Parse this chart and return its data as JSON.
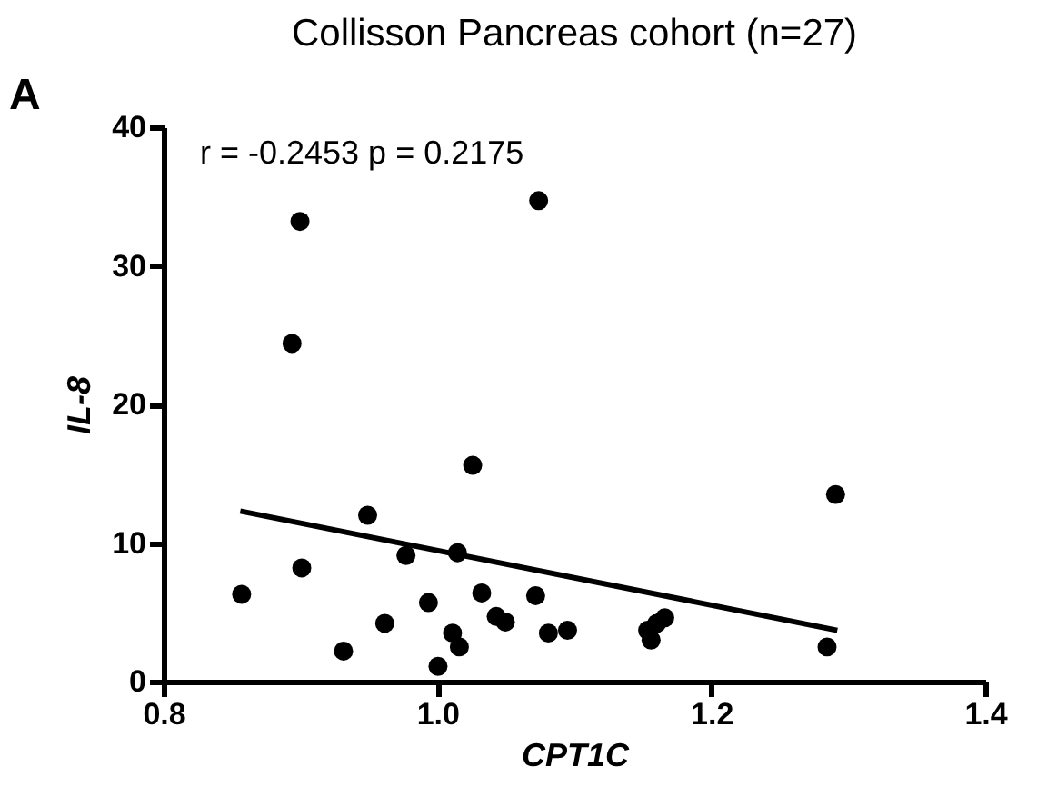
{
  "chart_data": {
    "type": "scatter",
    "title": "Collisson Pancreas cohort  (n=27)",
    "xlabel": "CPT1C",
    "ylabel": "IL-8",
    "annotations": [
      "A",
      "r = -0.2453    p = 0.2175"
    ],
    "xlim": [
      0.8,
      1.4
    ],
    "xticks": [
      0.8,
      {
        "value": 1.0,
        "label": "1.0"
      },
      1.2,
      1.4
    ],
    "ylim": [
      0,
      40
    ],
    "yticks": [
      0,
      10,
      20,
      30,
      40
    ],
    "grid": false,
    "series": [
      {
        "color": "#000000",
        "marker": "circle",
        "x": [
          0.8996,
          1.0739,
          0.8938,
          1.0257,
          1.2907,
          0.949,
          0.9009,
          0.977,
          1.0146,
          0.857,
          0.9934,
          1.0323,
          1.0717,
          0.9615,
          1.0429,
          1.0496,
          1.081,
          1.095,
          0.9314,
          1.011,
          1.016,
          1.0004,
          1.1535,
          1.156,
          1.166,
          1.2845,
          1.1602
        ],
        "values": [
          33.2,
          34.7,
          24.4,
          15.6,
          13.5,
          12.0,
          8.2,
          9.1,
          9.3,
          6.3,
          5.7,
          6.4,
          6.2,
          4.2,
          4.7,
          4.3,
          3.5,
          3.7,
          2.2,
          3.5,
          2.5,
          1.1,
          3.7,
          3.0,
          4.6,
          2.5,
          4.2
        ]
      },
      {
        "type": "line",
        "color": "#000000",
        "marker": "none",
        "x": [
          0.856,
          1.292
        ],
        "values": [
          12.3,
          3.7
        ]
      }
    ]
  }
}
